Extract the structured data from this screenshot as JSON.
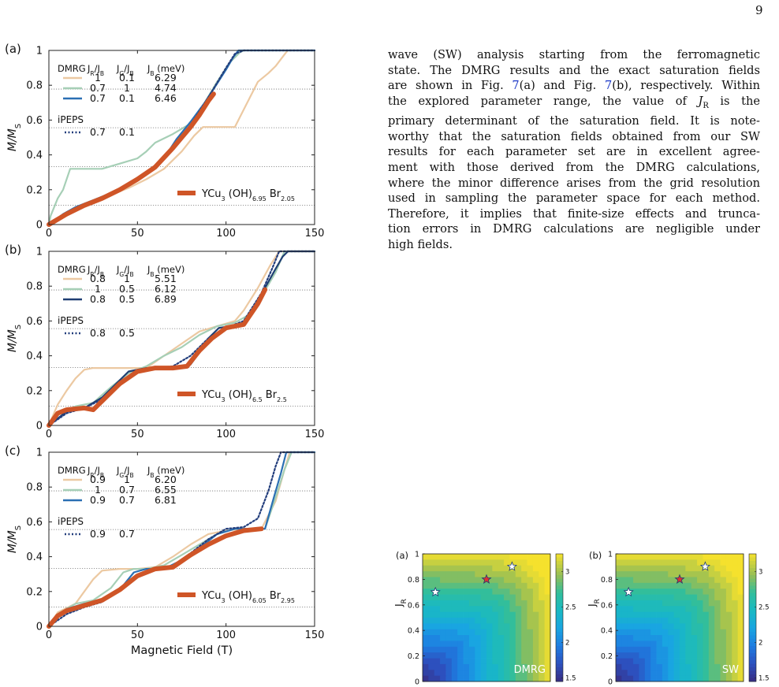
{
  "page_number": "9",
  "body_text": {
    "lines": [
      "wave (SW) analysis starting from the ferromagnetic",
      "state. The DMRG results and the exact saturation fields",
      [
        "are shown in Fig. ",
        "7",
        "(a) and Fig. ",
        "7",
        "(b), respectively. Within"
      ],
      [
        "the explored parameter range, the value of ",
        "J",
        "R",
        " is the"
      ],
      "primary determinant of the saturation field. It is note-",
      "worthy that the saturation fields obtained from our SW",
      "results for each parameter set are in excellent agree-",
      "ment with those derived from the DMRG calculations,",
      "where the minor difference arises from the grid resolution",
      "used in sampling the parameter space for each method.",
      "Therefore, it implies that finite-size effects and trunca-",
      "tion errors in DMRG calculations are negligible under",
      "high fields."
    ]
  },
  "colors": {
    "series_1": "#ecc9a2",
    "series_2": "#a6cfb6",
    "series_3a": "#2a6fb3",
    "series_3b": "#1f3e72",
    "ipeps": "#233e7c",
    "experiment": "#cf5527",
    "plateau_line": "#777777"
  },
  "chart_data": [
    {
      "type": "line",
      "panel_label": "(a)",
      "ylabel": "M/M_S",
      "xlabel": "",
      "xlim": [
        0,
        150
      ],
      "ylim": [
        0,
        1
      ],
      "xticks": [
        "0",
        "50",
        "100",
        "150"
      ],
      "yticks": [
        "0",
        "0.2",
        "0.4",
        "0.6",
        "0.8",
        "1"
      ],
      "plateaus": [
        0.111,
        0.333,
        0.556,
        0.778
      ],
      "legend_header": [
        "DMRG",
        "J_R/J_B",
        "J_G/J_B",
        "J_B (meV)"
      ],
      "series": [
        {
          "name": "DMRG",
          "params": [
            "1",
            "0.1",
            "6.29"
          ],
          "style": "series_1",
          "x": [
            0,
            8,
            15,
            25,
            35,
            45,
            55,
            65,
            75,
            82,
            87,
            90,
            92,
            100,
            105,
            108,
            110,
            118,
            124,
            128,
            131,
            134,
            135,
            150
          ],
          "y": [
            0,
            0.05,
            0.09,
            0.13,
            0.17,
            0.21,
            0.26,
            0.32,
            0.42,
            0.51,
            0.56,
            0.56,
            0.56,
            0.56,
            0.56,
            0.62,
            0.66,
            0.82,
            0.87,
            0.91,
            0.95,
            0.99,
            1,
            1
          ]
        },
        {
          "name": "DMRG",
          "params": [
            "0.7",
            "1",
            "4.74"
          ],
          "style": "series_2",
          "x": [
            0,
            1,
            3,
            5,
            8,
            12,
            30,
            40,
            50,
            55,
            60,
            70,
            80,
            85,
            95,
            102,
            108,
            110,
            150
          ],
          "y": [
            0,
            0.05,
            0.1,
            0.15,
            0.2,
            0.32,
            0.32,
            0.35,
            0.38,
            0.42,
            0.47,
            0.52,
            0.58,
            0.65,
            0.82,
            0.93,
            0.99,
            1,
            1
          ]
        },
        {
          "name": "DMRG",
          "params": [
            "0.7",
            "0.1",
            "6.46"
          ],
          "style": "series_3a",
          "x": [
            0,
            8,
            15,
            25,
            35,
            45,
            55,
            65,
            72,
            80,
            88,
            95,
            100,
            104,
            107,
            112,
            150
          ],
          "y": [
            0,
            0.06,
            0.1,
            0.14,
            0.18,
            0.23,
            0.29,
            0.38,
            0.49,
            0.59,
            0.7,
            0.81,
            0.89,
            0.96,
            1,
            1,
            1
          ]
        },
        {
          "name": "iPEPS",
          "params": [
            "0.7",
            "0.1"
          ],
          "style": "ipeps",
          "x": [
            0,
            10,
            20,
            30,
            40,
            50,
            60,
            70,
            80,
            90,
            100,
            105,
            110,
            150
          ],
          "y": [
            0,
            0.07,
            0.11,
            0.15,
            0.2,
            0.26,
            0.33,
            0.44,
            0.57,
            0.73,
            0.9,
            0.98,
            1,
            1
          ]
        },
        {
          "name": "YCu3 (OH)6.95 Br2.05",
          "style": "experiment",
          "x": [
            0,
            10,
            20,
            30,
            40,
            50,
            60,
            70,
            75,
            80,
            85,
            90,
            93
          ],
          "y": [
            0,
            0.06,
            0.11,
            0.15,
            0.2,
            0.26,
            0.33,
            0.44,
            0.5,
            0.56,
            0.63,
            0.71,
            0.75
          ]
        }
      ]
    },
    {
      "type": "line",
      "panel_label": "(b)",
      "ylabel": "M/M_S",
      "xlabel": "",
      "xlim": [
        0,
        150
      ],
      "ylim": [
        0,
        1
      ],
      "xticks": [
        "0",
        "50",
        "100",
        "150"
      ],
      "yticks": [
        "0",
        "0.2",
        "0.4",
        "0.6",
        "0.8",
        "1"
      ],
      "plateaus": [
        0.111,
        0.333,
        0.556,
        0.778
      ],
      "legend_header": [
        "DMRG",
        "J_R/J_B",
        "J_G/J_B",
        "J_B (meV)"
      ],
      "series": [
        {
          "name": "DMRG",
          "params": [
            "0.8",
            "1",
            "5.51"
          ],
          "style": "series_1",
          "x": [
            0,
            2,
            5,
            10,
            15,
            20,
            25,
            55,
            65,
            75,
            85,
            95,
            105,
            110,
            118,
            125,
            130,
            150
          ],
          "y": [
            0,
            0.05,
            0.12,
            0.2,
            0.27,
            0.32,
            0.33,
            0.33,
            0.4,
            0.47,
            0.54,
            0.57,
            0.6,
            0.66,
            0.79,
            0.92,
            1,
            1
          ]
        },
        {
          "name": "DMRG",
          "params": [
            "1",
            "0.5",
            "6.12"
          ],
          "style": "series_2",
          "x": [
            0,
            5,
            15,
            25,
            35,
            45,
            55,
            65,
            75,
            85,
            95,
            105,
            112,
            120,
            128,
            133,
            150
          ],
          "y": [
            0,
            0.06,
            0.11,
            0.13,
            0.22,
            0.3,
            0.34,
            0.4,
            0.45,
            0.52,
            0.57,
            0.59,
            0.63,
            0.74,
            0.88,
            1,
            1
          ]
        },
        {
          "name": "DMRG",
          "params": [
            "0.8",
            "0.5",
            "6.89"
          ],
          "style": "series_3b",
          "x": [
            0,
            10,
            20,
            30,
            38,
            45,
            55,
            65,
            75,
            80,
            85,
            90,
            96,
            103,
            110,
            115,
            122,
            128,
            132,
            135,
            150
          ],
          "y": [
            0,
            0.08,
            0.1,
            0.16,
            0.24,
            0.31,
            0.33,
            0.33,
            0.33,
            0.35,
            0.42,
            0.5,
            0.56,
            0.57,
            0.59,
            0.66,
            0.79,
            0.9,
            0.97,
            1,
            1
          ]
        },
        {
          "name": "iPEPS",
          "params": [
            "0.8",
            "0.5"
          ],
          "style": "ipeps",
          "x": [
            0,
            10,
            20,
            30,
            40,
            50,
            60,
            70,
            80,
            90,
            100,
            110,
            120,
            126,
            130,
            150
          ],
          "y": [
            0,
            0.07,
            0.1,
            0.15,
            0.23,
            0.31,
            0.33,
            0.34,
            0.4,
            0.5,
            0.56,
            0.6,
            0.76,
            0.9,
            1,
            1
          ]
        },
        {
          "name": "YCu3 (OH)6.5 Br2.5",
          "style": "experiment",
          "x": [
            0,
            5,
            10,
            20,
            25,
            30,
            40,
            50,
            60,
            70,
            78,
            85,
            92,
            100,
            110,
            118,
            122
          ],
          "y": [
            0,
            0.07,
            0.09,
            0.1,
            0.09,
            0.14,
            0.24,
            0.31,
            0.33,
            0.33,
            0.34,
            0.43,
            0.5,
            0.56,
            0.58,
            0.7,
            0.78
          ]
        }
      ]
    },
    {
      "type": "line",
      "panel_label": "(c)",
      "ylabel": "M/M_S",
      "xlabel": "Magnetic Field (T)",
      "xlim": [
        0,
        150
      ],
      "ylim": [
        0,
        1
      ],
      "xticks": [
        "0",
        "50",
        "100",
        "150"
      ],
      "yticks": [
        "0",
        "0.2",
        "0.4",
        "0.6",
        "0.8",
        "1"
      ],
      "plateaus": [
        0.111,
        0.333,
        0.556,
        0.778
      ],
      "legend_header": [
        "DMRG",
        "J_R/J_B",
        "J_G/J_B",
        "J_B (meV)"
      ],
      "series": [
        {
          "name": "DMRG",
          "params": [
            "0.9",
            "1",
            "6.20"
          ],
          "style": "series_1",
          "x": [
            0,
            5,
            15,
            20,
            25,
            30,
            40,
            50,
            60,
            70,
            80,
            90,
            100,
            110,
            120,
            128,
            133,
            136,
            150
          ],
          "y": [
            0,
            0.08,
            0.13,
            0.2,
            0.27,
            0.32,
            0.33,
            0.33,
            0.34,
            0.4,
            0.47,
            0.53,
            0.55,
            0.56,
            0.56,
            0.72,
            0.9,
            1,
            1
          ]
        },
        {
          "name": "DMRG",
          "params": [
            "1",
            "0.7",
            "6.55"
          ],
          "style": "series_2",
          "x": [
            0,
            5,
            15,
            25,
            35,
            42,
            48,
            55,
            65,
            75,
            85,
            95,
            105,
            115,
            122,
            128,
            133,
            137,
            150
          ],
          "y": [
            0,
            0.07,
            0.13,
            0.15,
            0.22,
            0.31,
            0.33,
            0.33,
            0.35,
            0.41,
            0.47,
            0.53,
            0.56,
            0.56,
            0.56,
            0.74,
            0.9,
            1,
            1
          ]
        },
        {
          "name": "DMRG",
          "params": [
            "0.9",
            "0.7",
            "6.81"
          ],
          "style": "series_3a",
          "x": [
            0,
            5,
            10,
            20,
            30,
            40,
            48,
            55,
            65,
            75,
            85,
            95,
            105,
            115,
            122,
            127,
            131,
            134,
            150
          ],
          "y": [
            0,
            0.06,
            0.1,
            0.13,
            0.15,
            0.21,
            0.31,
            0.33,
            0.33,
            0.38,
            0.45,
            0.53,
            0.56,
            0.56,
            0.56,
            0.74,
            0.88,
            1,
            1
          ]
        },
        {
          "name": "iPEPS",
          "params": [
            "0.9",
            "0.7"
          ],
          "style": "ipeps",
          "x": [
            0,
            10,
            20,
            30,
            40,
            50,
            60,
            70,
            80,
            90,
            100,
            110,
            118,
            124,
            128,
            131,
            150
          ],
          "y": [
            0,
            0.07,
            0.11,
            0.14,
            0.21,
            0.29,
            0.33,
            0.34,
            0.42,
            0.5,
            0.56,
            0.57,
            0.62,
            0.78,
            0.92,
            1,
            1
          ]
        },
        {
          "name": "YCu3 (OH)6.05 Br2.95",
          "style": "experiment",
          "x": [
            0,
            5,
            10,
            20,
            30,
            40,
            50,
            60,
            70,
            80,
            90,
            100,
            110,
            120
          ],
          "y": [
            0,
            0.06,
            0.09,
            0.12,
            0.15,
            0.21,
            0.29,
            0.33,
            0.34,
            0.41,
            0.47,
            0.52,
            0.55,
            0.56
          ]
        }
      ]
    },
    {
      "type": "heatmap",
      "panel_label": "(a)",
      "method_label": "DMRG",
      "ylabel": "J_R",
      "xlim": [
        0,
        1
      ],
      "ylim": [
        0,
        1
      ],
      "yticks": [
        "0",
        "0.2",
        "0.4",
        "0.6",
        "0.8",
        "1"
      ],
      "colorbar_ticks": [
        "1.5",
        "2",
        "2.5",
        "3"
      ],
      "colorbar_range": [
        1.45,
        3.25
      ],
      "markers": [
        {
          "x": 0.1,
          "y": 0.7,
          "color": "#ffffff"
        },
        {
          "x": 0.5,
          "y": 0.8,
          "color": "#e03030"
        },
        {
          "x": 0.7,
          "y": 0.9,
          "color": "#ffffff"
        }
      ]
    },
    {
      "type": "heatmap",
      "panel_label": "(b)",
      "method_label": "SW",
      "ylabel": "J_R",
      "xlim": [
        0,
        1
      ],
      "ylim": [
        0,
        1
      ],
      "yticks": [
        "0",
        "0.2",
        "0.4",
        "0.6",
        "0.8",
        "1"
      ],
      "colorbar_ticks": [
        "1.5",
        "2",
        "2.5",
        "3"
      ],
      "colorbar_range": [
        1.45,
        3.25
      ],
      "markers": [
        {
          "x": 0.1,
          "y": 0.7,
          "color": "#ffffff"
        },
        {
          "x": 0.5,
          "y": 0.8,
          "color": "#e03030"
        },
        {
          "x": 0.7,
          "y": 0.9,
          "color": "#ffffff"
        }
      ]
    }
  ]
}
